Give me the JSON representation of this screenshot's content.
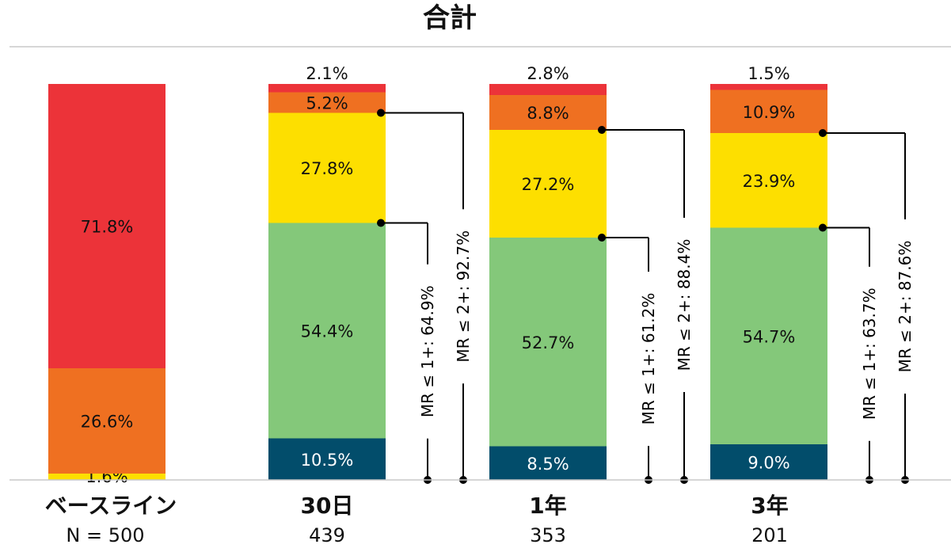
{
  "chart_data": {
    "type": "bar",
    "stacked": true,
    "title": "合計",
    "categories": [
      {
        "label": "ベースライン",
        "n": "N = 500"
      },
      {
        "label": "30日",
        "n": "439"
      },
      {
        "label": "1年",
        "n": "353"
      },
      {
        "label": "3年",
        "n": "201"
      }
    ],
    "segment_colors": [
      "#024d6b",
      "#84c87a",
      "#fddf00",
      "#ef7021",
      "#ec3339"
    ],
    "segments": [
      [
        {
          "value": 0,
          "label": ""
        },
        {
          "value": 0,
          "label": ""
        },
        {
          "value": 1.6,
          "label": "1.6%"
        },
        {
          "value": 26.6,
          "label": "26.6%"
        },
        {
          "value": 71.8,
          "label": "71.8%"
        }
      ],
      [
        {
          "value": 10.5,
          "label": "10.5%"
        },
        {
          "value": 54.4,
          "label": "54.4%"
        },
        {
          "value": 27.8,
          "label": "27.8%"
        },
        {
          "value": 5.2,
          "label": "5.2%"
        },
        {
          "value": 2.1,
          "label": "2.1%"
        }
      ],
      [
        {
          "value": 8.5,
          "label": "8.5%"
        },
        {
          "value": 52.7,
          "label": "52.7%"
        },
        {
          "value": 27.2,
          "label": "27.2%"
        },
        {
          "value": 8.8,
          "label": "8.8%"
        },
        {
          "value": 2.8,
          "label": "2.8%"
        }
      ],
      [
        {
          "value": 9.0,
          "label": "9.0%"
        },
        {
          "value": 54.7,
          "label": "54.7%"
        },
        {
          "value": 23.9,
          "label": "23.9%"
        },
        {
          "value": 10.9,
          "label": "10.9%"
        },
        {
          "value": 1.5,
          "label": "1.5%"
        }
      ]
    ],
    "brackets": [
      {
        "category": 1,
        "level": 1,
        "label": "MR ≤ 1+: 64.9%"
      },
      {
        "category": 1,
        "level": 2,
        "label": "MR ≤ 2+: 92.7%"
      },
      {
        "category": 2,
        "level": 1,
        "label": "MR ≤ 1+: 61.2%"
      },
      {
        "category": 2,
        "level": 2,
        "label": "MR ≤ 2+: 88.4%"
      },
      {
        "category": 3,
        "level": 1,
        "label": "MR ≤ 1+: 63.7%"
      },
      {
        "category": 3,
        "level": 2,
        "label": "MR ≤ 2+: 87.6%"
      }
    ],
    "ylim": [
      0,
      100
    ]
  }
}
